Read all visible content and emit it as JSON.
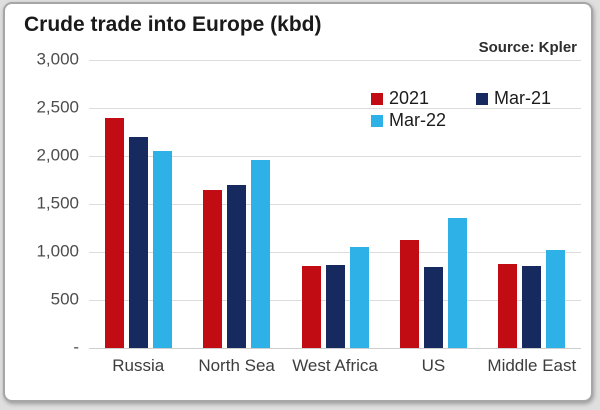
{
  "chart_data": {
    "type": "bar",
    "title": "Crude trade into Europe (kbd)",
    "source": "Source: Kpler",
    "categories": [
      "Russia",
      "North Sea",
      "West Africa",
      "US",
      "Middle East"
    ],
    "series": [
      {
        "name": "2021",
        "color": "#c00c12",
        "values": [
          2400,
          1650,
          850,
          1120,
          880
        ]
      },
      {
        "name": "Mar-21",
        "color": "#172a60",
        "values": [
          2200,
          1700,
          860,
          840,
          850
        ]
      },
      {
        "name": "Mar-22",
        "color": "#2eb1e6",
        "values": [
          2050,
          1960,
          1050,
          1350,
          1020
        ]
      }
    ],
    "y_axis": {
      "min": 0,
      "max": 3000,
      "tick_labels": [
        "3,000",
        "2,500",
        "2,000",
        "1,500",
        "1,000",
        "500",
        "-"
      ],
      "tick_values": [
        3000,
        2500,
        2000,
        1500,
        1000,
        500,
        0
      ]
    },
    "legend_rows": [
      [
        "2021",
        "Mar-21"
      ],
      [
        "Mar-22"
      ]
    ],
    "legend_position": "top-right-inside",
    "grid": true,
    "ylabel": "",
    "xlabel": ""
  }
}
